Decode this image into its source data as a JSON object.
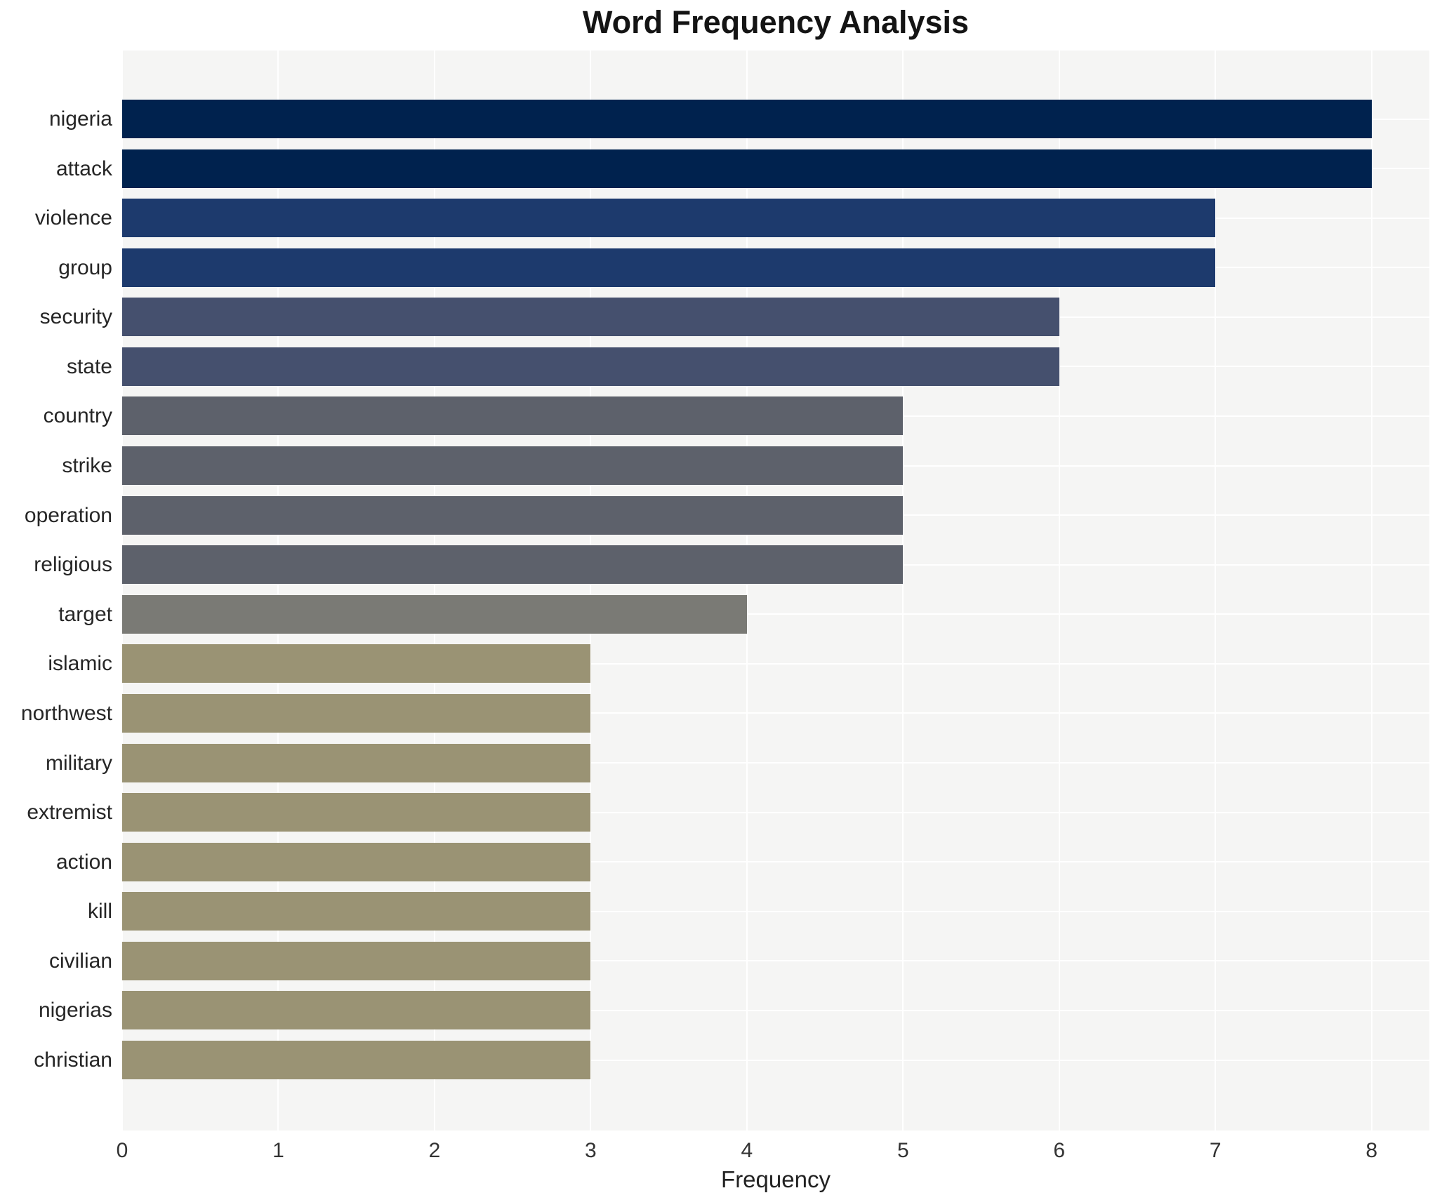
{
  "title": "Word Frequency Analysis",
  "xlabel": "Frequency",
  "chart_data": {
    "type": "bar",
    "orientation": "horizontal",
    "title": "Word Frequency Analysis",
    "xlabel": "Frequency",
    "ylabel": "",
    "categories": [
      "nigeria",
      "attack",
      "violence",
      "group",
      "security",
      "state",
      "country",
      "strike",
      "operation",
      "religious",
      "target",
      "islamic",
      "northwest",
      "military",
      "extremist",
      "action",
      "kill",
      "civilian",
      "nigerias",
      "christian"
    ],
    "values": [
      8,
      8,
      7,
      7,
      6,
      6,
      5,
      5,
      5,
      5,
      4,
      3,
      3,
      3,
      3,
      3,
      3,
      3,
      3,
      3
    ],
    "xlim": [
      0,
      8.37
    ],
    "xticks": [
      0,
      1,
      2,
      3,
      4,
      5,
      6,
      7,
      8
    ],
    "grid": true,
    "legend": false,
    "plot_bg": "#f5f5f4",
    "grid_color": "#ffffff",
    "palette_by_value": {
      "8": "#00224e",
      "7": "#1d3a6d",
      "6": "#45506e",
      "5": "#5d616b",
      "4": "#7a7a75",
      "3": "#9a9374"
    }
  }
}
